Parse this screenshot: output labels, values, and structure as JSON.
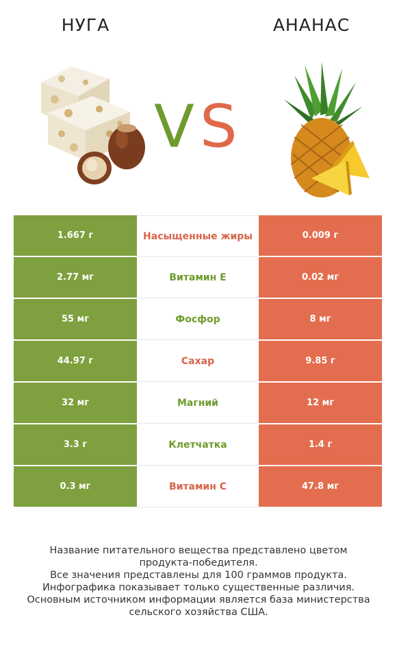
{
  "header": {
    "left_title": "НУГА",
    "right_title": "АНАНАС",
    "vs_v": "V",
    "vs_s": "S"
  },
  "colors": {
    "winner_left": "#7ea03e",
    "winner_right": "#e36e4f"
  },
  "rows": [
    {
      "left": "1.667 г",
      "label": "Насыщенные жиры",
      "right": "0.009 г",
      "winner": "right"
    },
    {
      "left": "2.77 мг",
      "label": "Витамин E",
      "right": "0.02 мг",
      "winner": "left"
    },
    {
      "left": "55 мг",
      "label": "Фосфор",
      "right": "8 мг",
      "winner": "left"
    },
    {
      "left": "44.97 г",
      "label": "Сахар",
      "right": "9.85 г",
      "winner": "right"
    },
    {
      "left": "32 мг",
      "label": "Магний",
      "right": "12 мг",
      "winner": "left"
    },
    {
      "left": "3.3 г",
      "label": "Клетчатка",
      "right": "1.4 г",
      "winner": "left"
    },
    {
      "left": "0.3 мг",
      "label": "Витамин C",
      "right": "47.8 мг",
      "winner": "right"
    }
  ],
  "footer": {
    "line1": "Название питательного вещества представлено цветом",
    "line2": "продукта-победителя.",
    "line3": "Все значения представлены для 100 граммов продукта.",
    "line4": "Инфографика показывает только существенные различия.",
    "line5": "Основным источником информации является база министерства",
    "line6": "сельского хозяйства США."
  }
}
